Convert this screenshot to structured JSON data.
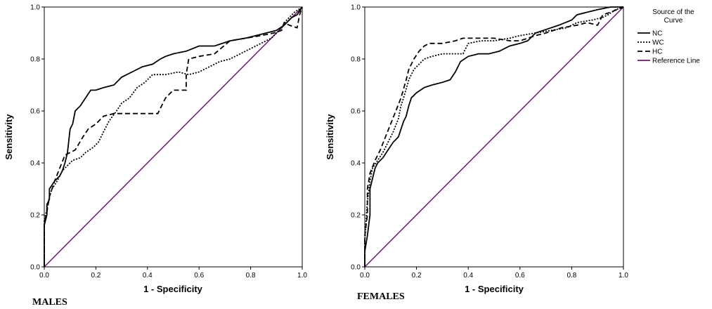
{
  "legend": {
    "title": "Source of the Curve",
    "items": [
      {
        "label": "NC",
        "style": "solid",
        "color": "#000000"
      },
      {
        "label": "WC",
        "style": "dotted",
        "color": "#000000"
      },
      {
        "label": "HC",
        "style": "dashed",
        "color": "#000000"
      },
      {
        "label": "Reference Line",
        "style": "solid",
        "color": "#6b1a73"
      }
    ]
  },
  "chart_data": [
    {
      "type": "line",
      "panel_label": "MALES",
      "xlabel": "1 - Specificity",
      "ylabel": "Sensitivity",
      "xlim": [
        0,
        1
      ],
      "ylim": [
        0,
        1
      ],
      "xticks": [
        "0.0",
        "0.2",
        "0.4",
        "0.6",
        "0.8",
        "1.0"
      ],
      "yticks": [
        "0.0",
        "0.2",
        "0.4",
        "0.6",
        "0.8",
        "1.0"
      ],
      "grid": false,
      "series": [
        {
          "name": "NC",
          "style": "solid",
          "color": "#000000",
          "points": [
            [
              0,
              0
            ],
            [
              0,
              0.16
            ],
            [
              0.01,
              0.2
            ],
            [
              0.01,
              0.24
            ],
            [
              0.02,
              0.26
            ],
            [
              0.02,
              0.3
            ],
            [
              0.04,
              0.33
            ],
            [
              0.06,
              0.35
            ],
            [
              0.07,
              0.37
            ],
            [
              0.08,
              0.4
            ],
            [
              0.09,
              0.44
            ],
            [
              0.1,
              0.53
            ],
            [
              0.11,
              0.55
            ],
            [
              0.12,
              0.6
            ],
            [
              0.14,
              0.62
            ],
            [
              0.16,
              0.65
            ],
            [
              0.18,
              0.68
            ],
            [
              0.2,
              0.68
            ],
            [
              0.23,
              0.69
            ],
            [
              0.27,
              0.7
            ],
            [
              0.3,
              0.73
            ],
            [
              0.34,
              0.75
            ],
            [
              0.38,
              0.77
            ],
            [
              0.42,
              0.78
            ],
            [
              0.45,
              0.8
            ],
            [
              0.47,
              0.81
            ],
            [
              0.5,
              0.82
            ],
            [
              0.55,
              0.83
            ],
            [
              0.6,
              0.85
            ],
            [
              0.66,
              0.85
            ],
            [
              0.72,
              0.87
            ],
            [
              0.78,
              0.88
            ],
            [
              0.82,
              0.89
            ],
            [
              0.86,
              0.9
            ],
            [
              0.9,
              0.91
            ],
            [
              0.93,
              0.93
            ],
            [
              0.96,
              0.96
            ],
            [
              0.98,
              0.97
            ],
            [
              1,
              1
            ]
          ]
        },
        {
          "name": "WC",
          "style": "dotted",
          "color": "#000000",
          "points": [
            [
              0,
              0
            ],
            [
              0,
              0.18
            ],
            [
              0.01,
              0.22
            ],
            [
              0.02,
              0.27
            ],
            [
              0.03,
              0.3
            ],
            [
              0.05,
              0.33
            ],
            [
              0.07,
              0.37
            ],
            [
              0.09,
              0.39
            ],
            [
              0.11,
              0.41
            ],
            [
              0.14,
              0.42
            ],
            [
              0.16,
              0.44
            ],
            [
              0.19,
              0.46
            ],
            [
              0.21,
              0.48
            ],
            [
              0.23,
              0.52
            ],
            [
              0.25,
              0.56
            ],
            [
              0.28,
              0.6
            ],
            [
              0.3,
              0.63
            ],
            [
              0.33,
              0.65
            ],
            [
              0.36,
              0.69
            ],
            [
              0.39,
              0.71
            ],
            [
              0.42,
              0.74
            ],
            [
              0.47,
              0.74
            ],
            [
              0.52,
              0.75
            ],
            [
              0.56,
              0.74
            ],
            [
              0.6,
              0.75
            ],
            [
              0.64,
              0.77
            ],
            [
              0.68,
              0.79
            ],
            [
              0.72,
              0.8
            ],
            [
              0.76,
              0.82
            ],
            [
              0.8,
              0.84
            ],
            [
              0.84,
              0.86
            ],
            [
              0.88,
              0.88
            ],
            [
              0.92,
              0.92
            ],
            [
              0.94,
              0.95
            ],
            [
              0.97,
              0.98
            ],
            [
              1,
              1
            ]
          ]
        },
        {
          "name": "HC",
          "style": "dashed",
          "color": "#000000",
          "points": [
            [
              0,
              0
            ],
            [
              0,
              0.17
            ],
            [
              0.01,
              0.21
            ],
            [
              0.02,
              0.27
            ],
            [
              0.04,
              0.33
            ],
            [
              0.06,
              0.38
            ],
            [
              0.08,
              0.43
            ],
            [
              0.12,
              0.45
            ],
            [
              0.15,
              0.5
            ],
            [
              0.17,
              0.53
            ],
            [
              0.2,
              0.55
            ],
            [
              0.23,
              0.58
            ],
            [
              0.27,
              0.59
            ],
            [
              0.3,
              0.59
            ],
            [
              0.36,
              0.59
            ],
            [
              0.4,
              0.59
            ],
            [
              0.44,
              0.59
            ],
            [
              0.47,
              0.65
            ],
            [
              0.5,
              0.68
            ],
            [
              0.55,
              0.68
            ],
            [
              0.55,
              0.74
            ],
            [
              0.56,
              0.8
            ],
            [
              0.6,
              0.81
            ],
            [
              0.66,
              0.82
            ],
            [
              0.72,
              0.87
            ],
            [
              0.78,
              0.88
            ],
            [
              0.84,
              0.89
            ],
            [
              0.89,
              0.9
            ],
            [
              0.92,
              0.91
            ],
            [
              0.93,
              0.94
            ],
            [
              0.95,
              0.93
            ],
            [
              0.98,
              0.92
            ],
            [
              0.99,
              0.97
            ],
            [
              1,
              1
            ]
          ]
        }
      ],
      "reference_line": {
        "name": "Reference Line",
        "points": [
          [
            0,
            0
          ],
          [
            1,
            1
          ]
        ],
        "color": "#6b1a73"
      }
    },
    {
      "type": "line",
      "panel_label": "FEMALES",
      "xlabel": "1 - Specificity",
      "ylabel": "Sensitivity",
      "xlim": [
        0,
        1
      ],
      "ylim": [
        0,
        1
      ],
      "xticks": [
        "0.0",
        "0.2",
        "0.4",
        "0.6",
        "0.8",
        "1.0"
      ],
      "yticks": [
        "0.0",
        "0.2",
        "0.4",
        "0.6",
        "0.8",
        "1.0"
      ],
      "grid": false,
      "series": [
        {
          "name": "NC",
          "style": "solid",
          "color": "#000000",
          "points": [
            [
              0,
              0
            ],
            [
              0,
              0.06
            ],
            [
              0.01,
              0.12
            ],
            [
              0.02,
              0.2
            ],
            [
              0.02,
              0.3
            ],
            [
              0.03,
              0.34
            ],
            [
              0.04,
              0.38
            ],
            [
              0.05,
              0.4
            ],
            [
              0.07,
              0.42
            ],
            [
              0.09,
              0.45
            ],
            [
              0.11,
              0.48
            ],
            [
              0.13,
              0.5
            ],
            [
              0.14,
              0.53
            ],
            [
              0.15,
              0.56
            ],
            [
              0.16,
              0.58
            ],
            [
              0.17,
              0.62
            ],
            [
              0.18,
              0.65
            ],
            [
              0.2,
              0.67
            ],
            [
              0.23,
              0.69
            ],
            [
              0.26,
              0.7
            ],
            [
              0.3,
              0.71
            ],
            [
              0.33,
              0.72
            ],
            [
              0.35,
              0.75
            ],
            [
              0.37,
              0.79
            ],
            [
              0.4,
              0.81
            ],
            [
              0.44,
              0.82
            ],
            [
              0.48,
              0.82
            ],
            [
              0.52,
              0.83
            ],
            [
              0.56,
              0.85
            ],
            [
              0.6,
              0.86
            ],
            [
              0.63,
              0.87
            ],
            [
              0.66,
              0.9
            ],
            [
              0.69,
              0.91
            ],
            [
              0.75,
              0.93
            ],
            [
              0.8,
              0.95
            ],
            [
              0.82,
              0.97
            ],
            [
              0.86,
              0.98
            ],
            [
              0.9,
              0.99
            ],
            [
              0.95,
              1
            ],
            [
              1,
              1
            ]
          ]
        },
        {
          "name": "WC",
          "style": "dotted",
          "color": "#000000",
          "points": [
            [
              0,
              0
            ],
            [
              0,
              0.1
            ],
            [
              0.01,
              0.25
            ],
            [
              0.02,
              0.33
            ],
            [
              0.03,
              0.38
            ],
            [
              0.05,
              0.41
            ],
            [
              0.07,
              0.44
            ],
            [
              0.09,
              0.48
            ],
            [
              0.11,
              0.52
            ],
            [
              0.13,
              0.57
            ],
            [
              0.14,
              0.62
            ],
            [
              0.15,
              0.65
            ],
            [
              0.17,
              0.72
            ],
            [
              0.19,
              0.76
            ],
            [
              0.21,
              0.78
            ],
            [
              0.23,
              0.8
            ],
            [
              0.26,
              0.81
            ],
            [
              0.3,
              0.82
            ],
            [
              0.34,
              0.82
            ],
            [
              0.38,
              0.82
            ],
            [
              0.4,
              0.86
            ],
            [
              0.45,
              0.87
            ],
            [
              0.5,
              0.87
            ],
            [
              0.56,
              0.88
            ],
            [
              0.6,
              0.89
            ],
            [
              0.66,
              0.9
            ],
            [
              0.72,
              0.91
            ],
            [
              0.78,
              0.92
            ],
            [
              0.82,
              0.94
            ],
            [
              0.88,
              0.95
            ],
            [
              0.92,
              0.96
            ],
            [
              0.94,
              0.97
            ],
            [
              0.97,
              0.99
            ],
            [
              1,
              1
            ]
          ]
        },
        {
          "name": "HC",
          "style": "dashed",
          "color": "#000000",
          "points": [
            [
              0,
              0
            ],
            [
              0,
              0.12
            ],
            [
              0.01,
              0.2
            ],
            [
              0.01,
              0.3
            ],
            [
              0.02,
              0.36
            ],
            [
              0.04,
              0.41
            ],
            [
              0.06,
              0.45
            ],
            [
              0.08,
              0.5
            ],
            [
              0.1,
              0.55
            ],
            [
              0.12,
              0.6
            ],
            [
              0.14,
              0.65
            ],
            [
              0.16,
              0.72
            ],
            [
              0.17,
              0.76
            ],
            [
              0.19,
              0.8
            ],
            [
              0.21,
              0.83
            ],
            [
              0.23,
              0.85
            ],
            [
              0.25,
              0.86
            ],
            [
              0.3,
              0.86
            ],
            [
              0.35,
              0.87
            ],
            [
              0.38,
              0.88
            ],
            [
              0.45,
              0.88
            ],
            [
              0.5,
              0.88
            ],
            [
              0.56,
              0.87
            ],
            [
              0.6,
              0.87
            ],
            [
              0.66,
              0.89
            ],
            [
              0.7,
              0.9
            ],
            [
              0.76,
              0.92
            ],
            [
              0.82,
              0.93
            ],
            [
              0.86,
              0.94
            ],
            [
              0.9,
              0.93
            ],
            [
              0.92,
              0.97
            ],
            [
              0.95,
              0.98
            ],
            [
              1,
              1
            ]
          ]
        }
      ],
      "reference_line": {
        "name": "Reference Line",
        "points": [
          [
            0,
            0
          ],
          [
            1,
            1
          ]
        ],
        "color": "#6b1a73"
      }
    }
  ]
}
